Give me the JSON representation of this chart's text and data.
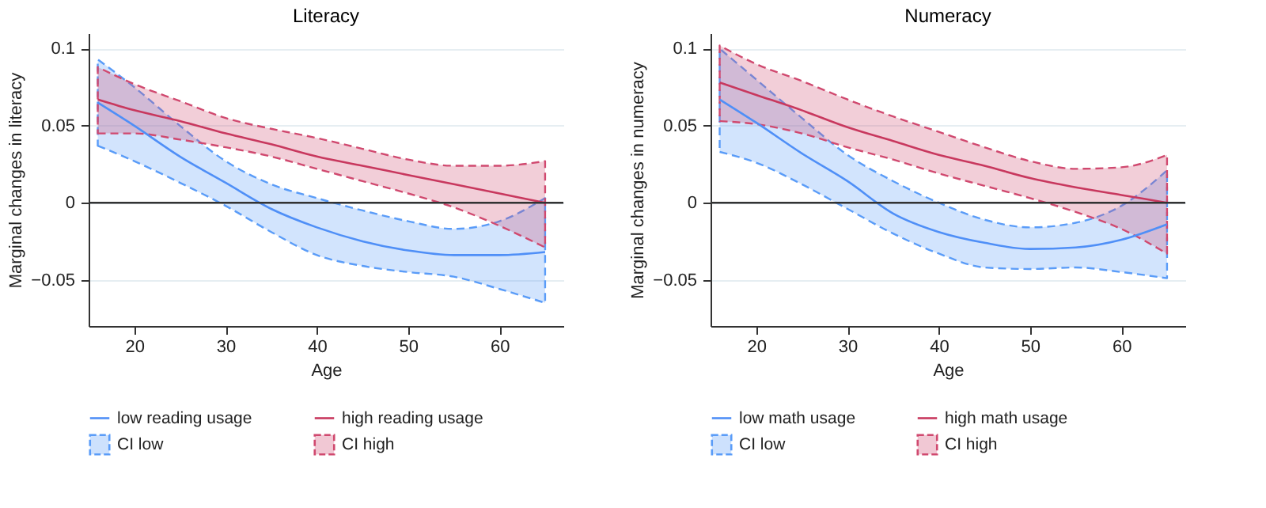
{
  "chart_data": [
    {
      "type": "line",
      "title": "Literacy",
      "xlabel": "Age",
      "ylabel": "Marginal changes in literacy",
      "x": [
        16,
        20,
        25,
        30,
        35,
        40,
        45,
        50,
        55,
        60,
        65
      ],
      "xlim": [
        15,
        67
      ],
      "xticks": [
        20,
        30,
        40,
        50,
        60
      ],
      "ylim": [
        -0.08,
        0.11
      ],
      "yticks": [
        -0.05,
        0,
        0.05,
        0.1
      ],
      "grid": "y",
      "legend": "bottom",
      "ref_lines": [
        {
          "axis": "y",
          "value": 0,
          "color": "#333333"
        }
      ],
      "series": [
        {
          "name": "low reading usage",
          "color": "#4f8ff7",
          "values": [
            0.065,
            0.05,
            0.03,
            0.013,
            -0.004,
            -0.016,
            -0.025,
            -0.031,
            -0.034,
            -0.034,
            -0.032
          ]
        },
        {
          "name": "high reading usage",
          "color": "#c8385e",
          "values": [
            0.067,
            0.06,
            0.053,
            0.045,
            0.038,
            0.03,
            0.024,
            0.018,
            0.012,
            0.006,
            0.0
          ]
        },
        {
          "name": "CI low",
          "type": "area",
          "color": "#5a9cf8",
          "line_style": "dashed",
          "values": [
            null,
            null,
            null,
            null,
            null,
            null,
            null,
            null,
            null,
            null,
            null
          ],
          "lower": [
            0.037,
            0.027,
            0.013,
            -0.002,
            -0.019,
            -0.034,
            -0.041,
            -0.045,
            -0.048,
            -0.056,
            -0.065
          ],
          "upper": [
            0.093,
            0.075,
            0.05,
            0.027,
            0.012,
            0.003,
            -0.005,
            -0.012,
            -0.017,
            -0.012,
            0.003
          ]
        },
        {
          "name": "CI high",
          "type": "area",
          "color": "#d0496f",
          "line_style": "dashed",
          "values": [
            null,
            null,
            null,
            null,
            null,
            null,
            null,
            null,
            null,
            null,
            null
          ],
          "lower": [
            0.045,
            0.045,
            0.041,
            0.036,
            0.03,
            0.022,
            0.014,
            0.006,
            -0.003,
            -0.015,
            -0.029
          ],
          "upper": [
            0.088,
            0.077,
            0.066,
            0.055,
            0.048,
            0.042,
            0.035,
            0.028,
            0.024,
            0.024,
            0.027
          ]
        }
      ]
    },
    {
      "type": "line",
      "title": "Numeracy",
      "xlabel": "Age",
      "ylabel": "Marginal changes in numeracy",
      "x": [
        16,
        20,
        25,
        30,
        35,
        40,
        45,
        50,
        55,
        60,
        65
      ],
      "xlim": [
        15,
        67
      ],
      "xticks": [
        20,
        30,
        40,
        50,
        60
      ],
      "ylim": [
        -0.08,
        0.11
      ],
      "yticks": [
        -0.05,
        0,
        0.05,
        0.1
      ],
      "grid": "y",
      "legend": "bottom",
      "ref_lines": [
        {
          "axis": "y",
          "value": 0,
          "color": "#333333"
        }
      ],
      "series": [
        {
          "name": "low math usage",
          "color": "#4f8ff7",
          "values": [
            0.067,
            0.052,
            0.032,
            0.014,
            -0.007,
            -0.019,
            -0.026,
            -0.03,
            -0.029,
            -0.024,
            -0.014
          ]
        },
        {
          "name": "high math usage",
          "color": "#c8385e",
          "values": [
            0.078,
            0.07,
            0.06,
            0.049,
            0.04,
            0.031,
            0.024,
            0.016,
            0.01,
            0.005,
            0.0
          ]
        },
        {
          "name": "CI low",
          "type": "area",
          "color": "#5a9cf8",
          "line_style": "dashed",
          "values": [
            null,
            null,
            null,
            null,
            null,
            null,
            null,
            null,
            null,
            null,
            null
          ],
          "lower": [
            0.033,
            0.026,
            0.012,
            -0.004,
            -0.02,
            -0.033,
            -0.042,
            -0.043,
            -0.042,
            -0.045,
            -0.049
          ],
          "upper": [
            0.1,
            0.08,
            0.055,
            0.031,
            0.014,
            0.0,
            -0.011,
            -0.016,
            -0.013,
            -0.002,
            0.021
          ]
        },
        {
          "name": "CI high",
          "type": "area",
          "color": "#d0496f",
          "line_style": "dashed",
          "values": [
            null,
            null,
            null,
            null,
            null,
            null,
            null,
            null,
            null,
            null,
            null
          ],
          "lower": [
            0.053,
            0.051,
            0.045,
            0.036,
            0.028,
            0.019,
            0.011,
            0.003,
            -0.006,
            -0.017,
            -0.033
          ],
          "upper": [
            0.102,
            0.09,
            0.079,
            0.067,
            0.056,
            0.046,
            0.036,
            0.027,
            0.022,
            0.023,
            0.031
          ]
        }
      ]
    }
  ]
}
